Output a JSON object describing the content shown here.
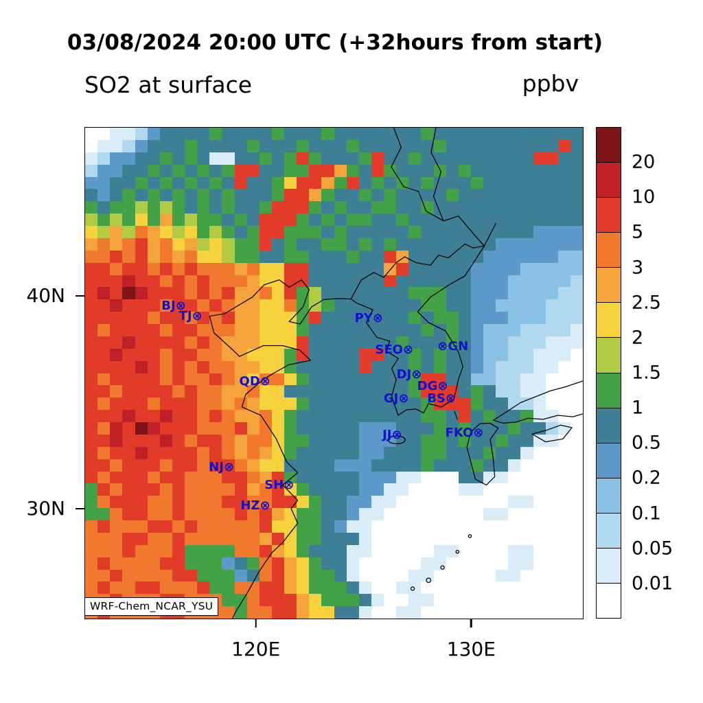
{
  "header": {
    "title": "03/08/2024 20:00 UTC (+32hours from start)",
    "left_label": "SO2 at surface",
    "units": "ppbv"
  },
  "map": {
    "model_label": "WRF-Chem_NCAR_YSU"
  },
  "colors": {
    "marker_blue": "#1010cd",
    "coastline": "#000000"
  },
  "axes": {
    "y_ticks": [
      {
        "label": "40N",
        "pos_pct": 34.3
      },
      {
        "label": "30N",
        "pos_pct": 77.6
      }
    ],
    "x_ticks": [
      {
        "label": "120E",
        "pos_pct": 34.4
      },
      {
        "label": "130E",
        "pos_pct": 77.6
      }
    ]
  },
  "colorbar": {
    "labels": [
      "20",
      "10",
      "5",
      "3",
      "2.5",
      "2",
      "1.5",
      "1",
      "0.5",
      "0.2",
      "0.1",
      "0.05",
      "0.01"
    ]
  },
  "markers": [
    {
      "id": "BJ",
      "text": "BJ⊗",
      "u": 17.8,
      "v": 36.4
    },
    {
      "id": "TJ",
      "text": "TJ⊗",
      "u": 21.2,
      "v": 38.5
    },
    {
      "id": "PY",
      "text": "PY⊗",
      "u": 57.0,
      "v": 38.9
    },
    {
      "id": "SEO",
      "text": "SEO⊗",
      "u": 62.1,
      "v": 45.3
    },
    {
      "id": "GN",
      "text": "⊗GN",
      "u": 73.9,
      "v": 44.6
    },
    {
      "id": "QD",
      "text": "QD⊗",
      "u": 34.1,
      "v": 51.8
    },
    {
      "id": "DJ",
      "text": "DJ⊗",
      "u": 65.1,
      "v": 50.4
    },
    {
      "id": "DG",
      "text": "DG⊗",
      "u": 69.8,
      "v": 52.7
    },
    {
      "id": "GJ",
      "text": "GJ⊗",
      "u": 62.5,
      "v": 55.3
    },
    {
      "id": "BS",
      "text": "BS⊗",
      "u": 71.6,
      "v": 55.3
    },
    {
      "id": "JJ",
      "text": "JJ⊗",
      "u": 61.7,
      "v": 62.7
    },
    {
      "id": "FKO",
      "text": "FKO⊗",
      "u": 76.2,
      "v": 62.3
    },
    {
      "id": "NJ",
      "text": "NJ⊗",
      "u": 27.4,
      "v": 69.3
    },
    {
      "id": "SH",
      "text": "SH⊗",
      "u": 39.0,
      "v": 72.8
    },
    {
      "id": "HZ",
      "text": "HZ⊗",
      "u": 34.2,
      "v": 77.0
    }
  ],
  "chart_data": {
    "type": "heatmap",
    "title": "SO2 at surface",
    "units": "ppbv",
    "timestamp": "03/08/2024 20:00 UTC (+32hours from start)",
    "legend_position": "right",
    "level_boundaries_ppbv": [
      0.01,
      0.05,
      0.1,
      0.2,
      0.5,
      1,
      1.5,
      2,
      2.5,
      3,
      5,
      10,
      20
    ],
    "palette_low_to_high": [
      "#ffffff",
      "#d9ecf8",
      "#b0d8ef",
      "#8ac2e6",
      "#5e9ac9",
      "#3f7f95",
      "#43a247",
      "#b1cb45",
      "#f8d23c",
      "#f5a33b",
      "#f0792e",
      "#e23b2a",
      "#bf2026",
      "#7d1417"
    ],
    "x_axis": {
      "ticks": [
        "120E",
        "130E"
      ],
      "positions_pct": [
        34.4,
        77.6
      ]
    },
    "y_axis": {
      "ticks": [
        "40N",
        "30N"
      ],
      "positions_pct": [
        34.3,
        77.6
      ]
    },
    "grid": {
      "cols": 40,
      "rows": 40,
      "encoding": "one hex digit per cell; 0=<0.01 ppbv (white) .. d=>20 ppbv (dark red)",
      "row_groups": [
        [
          "0011245555",
          "6555565556",
          "5555555655",
          "5555555555"
        ],
        [
          "0112455565",
          "5556555655",
          "5655555565",
          "55555555b5"
        ],
        [
          "1244556565",
          "1155656b65",
          "556b556555",
          "555555bb55"
        ],
        [
          "2445565656",
          "56bb5566bb",
          "965b655565",
          "6555555555"
        ],
        [
          "4455656565",
          "65b5568bb9",
          "6b56565655",
          "5655555555"
        ],
        [
          "5456565656",
          "565556bb96",
          "5565655556",
          "5555555555"
        ],
        [
          "6566767656",
          "56556bbb65",
          "6556655655",
          "5555555555"
        ],
        [
          "7676869676",
          "6565bbb656",
          "5665565555",
          "5555555555"
        ],
        [
          "8797a98786",
          "7656bb6665",
          "6555556555",
          "5555554444"
        ],
        [
          "9a9ab9a897",
          "8766b56556",
          "6565655555",
          "5554444444"
        ],
        [
          "aabab9a9a8",
          "8766556655",
          "5655b95555",
          "5544444433"
        ],
        [
          "bbabbababa",
          "aa9a88bb55",
          "55559b5555",
          "5444433333"
        ],
        [
          "bbbcbbabab",
          "aaa988bb55",
          "5555b55555",
          "5444333332"
        ],
        [
          "bcbdcbbbab",
          "ab99a8b675",
          "5555556665",
          "5444333322"
        ],
        [
          "bbcbbbabba",
          "ba9988a676",
          "5555555665",
          "5443333222"
        ],
        [
          "bbbbbabbab",
          "ab998886b5",
          "5555556566",
          "5444333222"
        ],
        [
          "babbbbabba",
          "aa99888655",
          "5555555656",
          "5433322221"
        ],
        [
          "bbbcbbbbab",
          "a999888b55",
          "5555565556",
          "5433222111"
        ],
        [
          "bbcbbbabba",
          "a998886b55",
          "55bb556565",
          "5433221110"
        ],
        [
          "bbbbcbabab",
          "aa99886555",
          "55b5556565",
          "5432221100"
        ],
        [
          "babbbbabaa",
          "ba98aa8655",
          "5555556bb5",
          "5332211000"
        ],
        [
          "bbabbbbaba",
          "a99a885555",
          "5555556bbb",
          "5652211000"
        ],
        [
          "babbbabbba",
          "a9a9888655",
          "55555556bb",
          "b655221000"
        ],
        [
          "bbbcbbcbba",
          "ba99a86555",
          "5555555665",
          "b565561100"
        ],
        [
          "bacbdcbbba",
          "aab9a86555",
          "5544455565",
          "6555655210"
        ],
        [
          "bbcbbbcbab",
          "ba9aa86655",
          "5544455665",
          "6556551100"
        ],
        [
          "babbcbbbba",
          "ba9a986555",
          "5544555665",
          "5565510000"
        ],
        [
          "bbabbbabba",
          "bba9885555",
          "4445555655",
          "5655100000"
        ],
        [
          "babbbabbaa",
          "abba9b6555",
          "5544411000",
          "5511000000"
        ],
        [
          "6babbbabaa",
          "aab9ab8655",
          "5544110000",
          "1100000000"
        ],
        [
          "6abbbaabaa",
          "abbaabb865",
          "5441100000",
          "0000110000"
        ],
        [
          "66abbaabaa",
          "aabab98665",
          "5411000000",
          "0011000000"
        ],
        [
          "abaaabbaba",
          "aaaab88665",
          "4110000000",
          "0000000000"
        ],
        [
          "aaabbaabaa",
          "aaaa9b8665",
          "5510000000",
          "0000000000"
        ],
        [
          "aaabaaab66",
          "66aab98655",
          "5110000011",
          "0000110000"
        ],
        [
          "abaaaabb66",
          "6456ab9865",
          "5100000110",
          "0000110000"
        ],
        [
          "aabaaaabb6",
          "6645ab9866",
          "5100001100",
          "0001100000"
        ],
        [
          "abaabbaaab",
          "66aabb9866",
          "6510011000",
          "0000000000"
        ],
        [
          "aabaaabbaa",
          "a66abbb986",
          "6651001100",
          "0000000000"
        ],
        [
          "abaaaabbaa",
          "aa6aabb988",
          "5510011000",
          "0000000000"
        ]
      ]
    }
  }
}
